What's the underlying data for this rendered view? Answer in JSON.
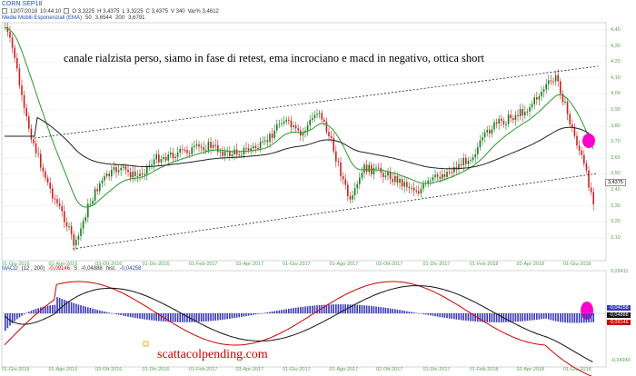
{
  "header": {
    "title": "CORN SEP18",
    "date": "12/07/2018",
    "time": "10:44:10",
    "open": "O 3,3225",
    "high": "H 3,4375",
    "low": "L 3,3225",
    "close": "C 3,4375",
    "volume": "V 340",
    "var": "Var% 3,4612"
  },
  "ema": {
    "label": "Medie Mobili Esponenziali (EMA)",
    "period1": "50",
    "value1": "3,6544",
    "period2": "200",
    "value2": "3,6791"
  },
  "annotation": "canale rialzista perso, siamo in fase di retest, ema incrociano e macd in negativo, ottica short",
  "price_axis": [
    "4,40",
    "4,30",
    "4,20",
    "4,10",
    "4,00",
    "3,90",
    "3,80",
    "3,70",
    "3,60",
    "3,50",
    "3,40",
    "3,30",
    "3,20",
    "3,10"
  ],
  "last_price": "3,4375",
  "date_axis": [
    "01-Giu-2016",
    "01-Ago-2016",
    "03-Ott-2016",
    "01-Dic-2016",
    "01-Feb-2017",
    "03-Apr-2017",
    "01-Giu-2017",
    "01-Ago-2017",
    "02-Ott-2017",
    "01-Dic-2017",
    "01-Feb-2018",
    "02-Apr-2018",
    "01-Giu-2018"
  ],
  "macd": {
    "label": "MACD",
    "params": "(12 , 200)",
    "macd_value": "-0,09146",
    "signal_label": "S",
    "signal_value": "-0,04888",
    "hist_label": "hist.",
    "hist_value": "-0,04258",
    "axis_top": "0,29411",
    "axis_bottom": "-0,34940",
    "tags": [
      "-0,04258",
      "-0,04888",
      "-0,09146"
    ]
  },
  "watermark": "scattacolpending.com",
  "colors": {
    "candle_up": "#1a7a1a",
    "candle_down": "#cc2020",
    "ema_fast": "#2a9a2a",
    "ema_slow": "#222222",
    "macd_line": "#cc0000",
    "signal_line": "#111111",
    "histogram": "#3a3ab8",
    "highlight": "#ff00cc"
  }
}
